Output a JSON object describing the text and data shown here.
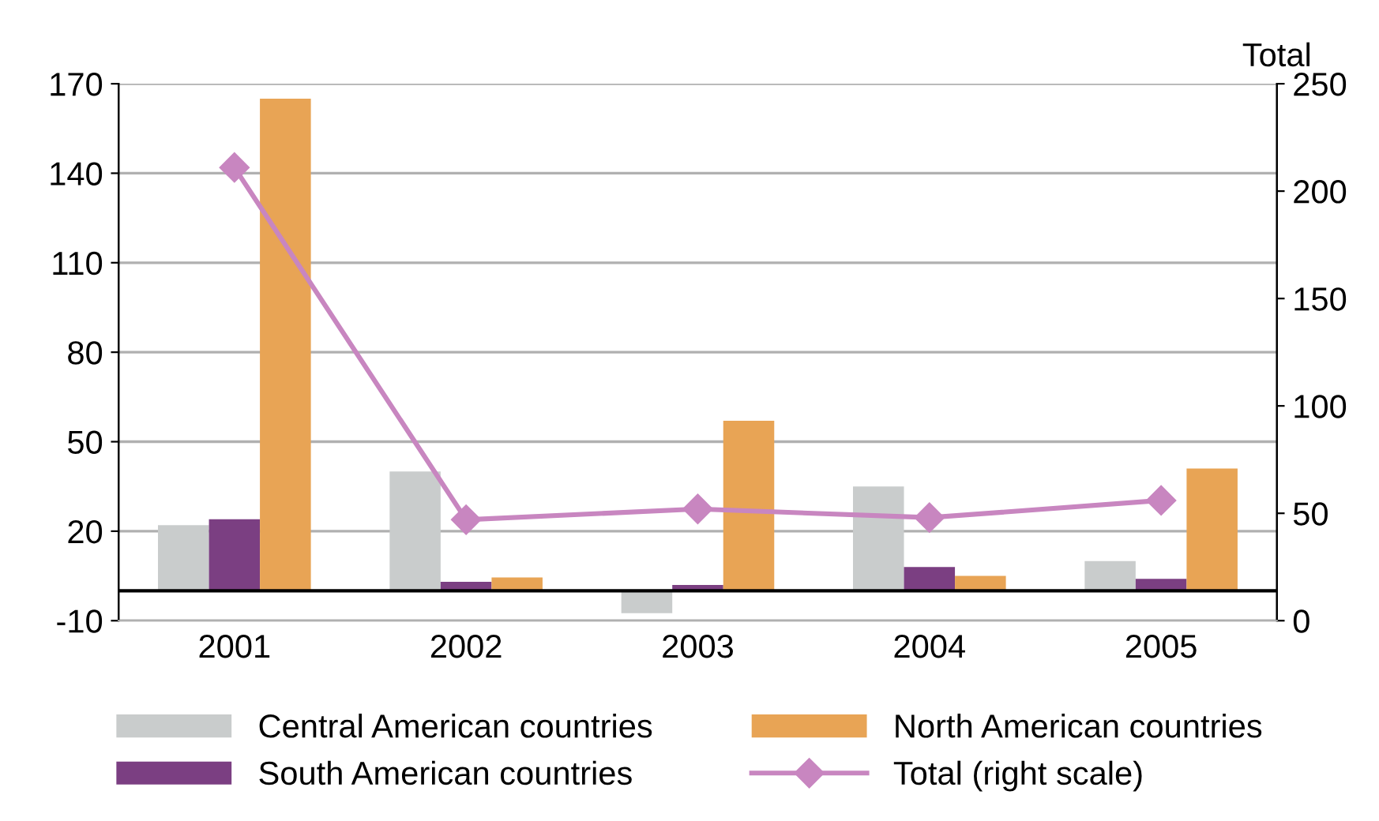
{
  "chart_data": {
    "type": "bar",
    "categories": [
      "2001",
      "2002",
      "2003",
      "2004",
      "2005"
    ],
    "series": [
      {
        "name": "Central American countries",
        "color": "#c9cccc",
        "values": [
          22,
          40,
          -7.5,
          35,
          10
        ]
      },
      {
        "name": "South American countries",
        "color": "#7b3f82",
        "values": [
          24,
          3,
          2,
          8,
          4
        ]
      },
      {
        "name": "North American countries",
        "color": "#e8a455",
        "values": [
          165,
          4.5,
          57,
          5,
          41
        ]
      },
      {
        "name": "Total (right scale)",
        "color": "#c886c0",
        "type": "line",
        "axis": "y2",
        "marker": "diamond",
        "values": [
          211,
          47,
          52,
          48,
          56
        ]
      }
    ],
    "ylim": [
      -10,
      170
    ],
    "yticks": [
      -10,
      20,
      50,
      80,
      110,
      140,
      170
    ],
    "y2lim": [
      0,
      250
    ],
    "y2ticks": [
      0,
      50,
      100,
      150,
      200,
      250
    ],
    "y2label": "Total",
    "ref_lines": [
      {
        "axis": "y",
        "value": 0,
        "color": "#000000"
      }
    ],
    "grid": "y",
    "legend": "bottom"
  }
}
